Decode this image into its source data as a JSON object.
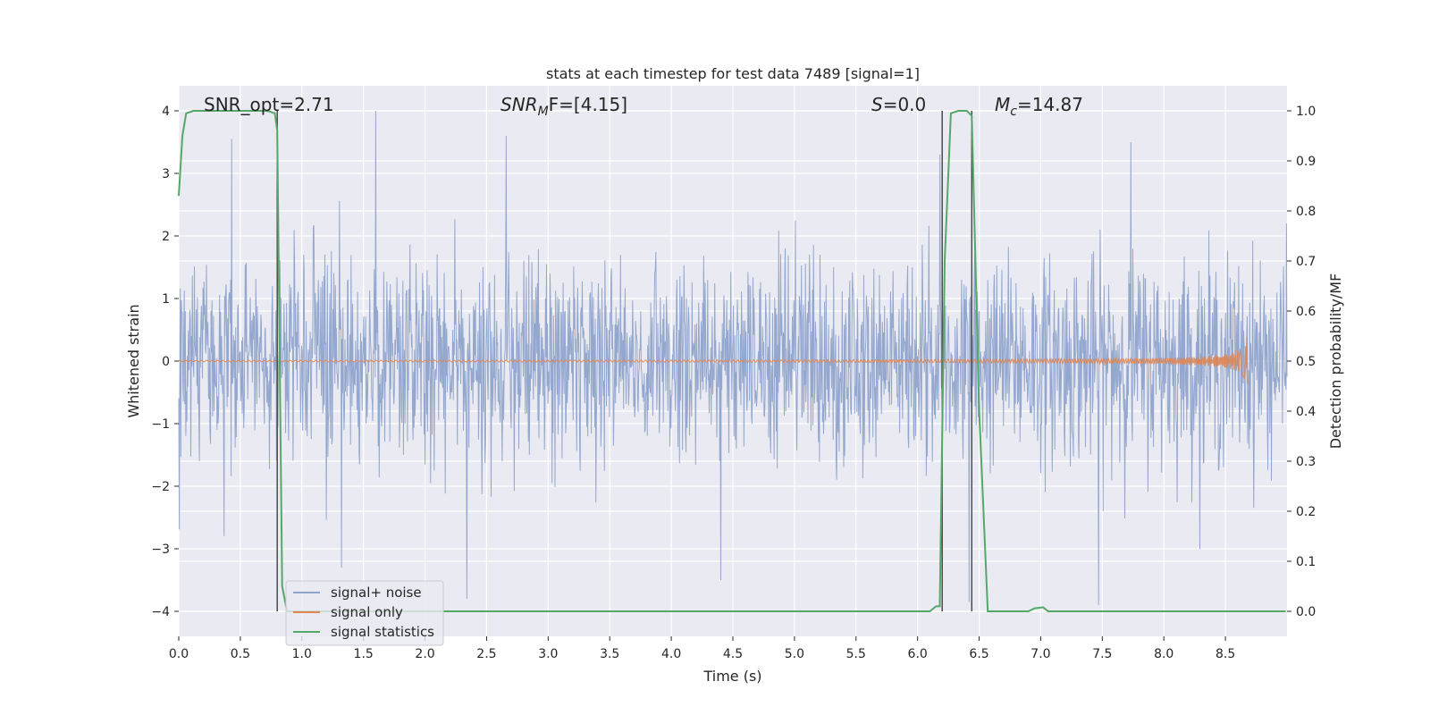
{
  "chart_data": {
    "type": "line",
    "title": "stats at each timestep for test data 7489 [signal=1]",
    "xlabel": "Time (s)",
    "ylabel": "Whitened strain",
    "y2label": "Detection probability/MF",
    "xlim": [
      0.0,
      9.0
    ],
    "ylim": [
      -4.4,
      4.4
    ],
    "y2lim": [
      -0.05,
      1.05
    ],
    "x_ticks": [
      "0.0",
      "0.5",
      "1.0",
      "1.5",
      "2.0",
      "2.5",
      "3.0",
      "3.5",
      "4.0",
      "4.5",
      "5.0",
      "5.5",
      "6.0",
      "6.5",
      "7.0",
      "7.5",
      "8.0",
      "8.5"
    ],
    "y_ticks": [
      "−4",
      "−3",
      "−2",
      "−1",
      "0",
      "1",
      "2",
      "3",
      "4"
    ],
    "y2_ticks": [
      "0.0",
      "0.1",
      "0.2",
      "0.3",
      "0.4",
      "0.5",
      "0.6",
      "0.7",
      "0.8",
      "0.9",
      "1.0"
    ],
    "grid": true,
    "legend_position": "lower-left",
    "annotations": {
      "snr_opt": "SNR_opt=2.71",
      "snr_mf_name": "SNR",
      "snr_mf_sub": "M",
      "snr_mf_rest": "F=[4.15]",
      "s_name": "S",
      "s_rest": "=0.0",
      "mc_name": "M",
      "mc_sub": "c",
      "mc_rest": "=14.87"
    },
    "vertical_lines_x": [
      0.8,
      6.2,
      6.44
    ],
    "series": [
      {
        "name": "signal+ noise",
        "color": "#8fa4cc",
        "kind": "noise",
        "band_sigma": 0.8,
        "peaks_positive": [
          [
            1.6,
            4.0
          ],
          [
            0.43,
            3.55
          ],
          [
            7.73,
            3.5
          ],
          [
            2.66,
            3.6
          ],
          [
            6.18,
            3.3
          ]
        ],
        "peaks_negative": [
          [
            7.47,
            -3.9
          ],
          [
            2.34,
            -3.8
          ],
          [
            6.42,
            -3.85
          ],
          [
            1.32,
            -3.3
          ],
          [
            4.4,
            -3.5
          ]
        ]
      },
      {
        "name": "signal only",
        "color": "#dd8452",
        "kind": "chirp",
        "x_end": 8.68,
        "final_amplitude": 0.45
      },
      {
        "name": "signal statistics",
        "color": "#55a868",
        "axis": "right",
        "x": [
          0.0,
          0.03,
          0.06,
          0.12,
          0.72,
          0.78,
          0.8,
          0.84,
          0.88,
          2.0,
          6.1,
          6.15,
          6.18,
          6.22,
          6.27,
          6.33,
          6.4,
          6.44,
          6.5,
          6.57,
          6.9,
          6.95,
          7.02,
          7.06,
          8.99
        ],
        "y": [
          0.83,
          0.95,
          0.995,
          1.0,
          1.0,
          0.995,
          0.96,
          0.05,
          0.0,
          0.0,
          0.0,
          0.01,
          0.01,
          0.7,
          0.995,
          1.0,
          1.0,
          0.99,
          0.4,
          0.0,
          0.0,
          0.006,
          0.008,
          0.0,
          0.0
        ]
      }
    ]
  }
}
